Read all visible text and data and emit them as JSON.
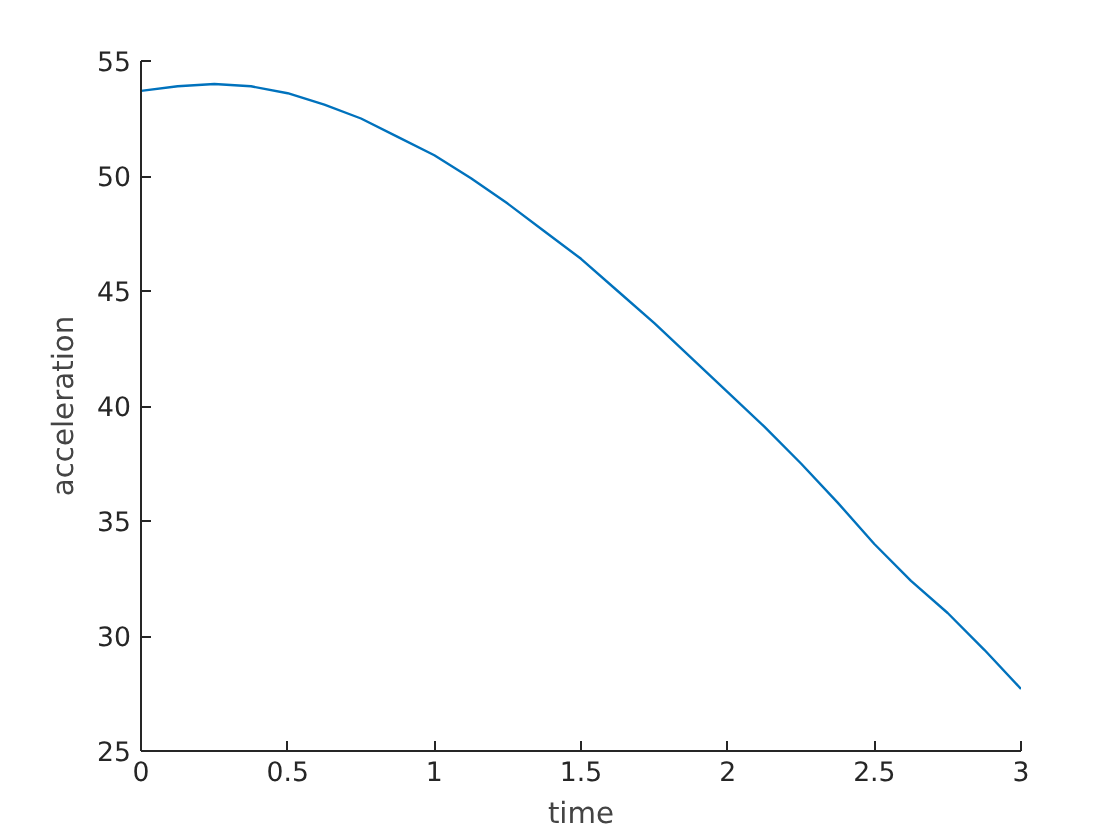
{
  "chart_data": {
    "type": "line",
    "xlabel": "time",
    "ylabel": "acceleration",
    "x": [
      0,
      0.125,
      0.25,
      0.375,
      0.5,
      0.625,
      0.75,
      0.875,
      1,
      1.125,
      1.25,
      1.375,
      1.5,
      1.625,
      1.75,
      1.875,
      2,
      2.125,
      2.25,
      2.375,
      2.5,
      2.625,
      2.75,
      2.875,
      3
    ],
    "series": [
      {
        "color": "#0072bd",
        "values": [
          53.7,
          53.9,
          54.0,
          53.9,
          53.6,
          53.1,
          52.5,
          51.7,
          50.9,
          49.9,
          48.8,
          47.6,
          46.4,
          45.0,
          43.6,
          42.1,
          40.6,
          39.1,
          37.5,
          35.8,
          34.0,
          32.4,
          31.0,
          29.4,
          27.7
        ]
      }
    ],
    "xlim": [
      0,
      3
    ],
    "ylim": [
      25,
      55
    ],
    "xticks": [
      0,
      0.5,
      1,
      1.5,
      2,
      2.5,
      3
    ],
    "yticks": [
      25,
      30,
      35,
      40,
      45,
      50,
      55
    ],
    "marker": "none",
    "line_style": "solid"
  }
}
